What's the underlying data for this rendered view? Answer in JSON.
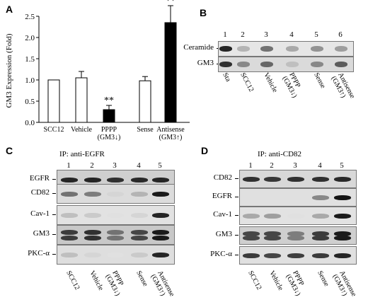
{
  "panels": {
    "A": {
      "letter": "A"
    },
    "B": {
      "letter": "B"
    },
    "C": {
      "letter": "C"
    },
    "D": {
      "letter": "D"
    }
  },
  "chart_data": {
    "type": "bar",
    "ylabel": "GM3 Expression (Fold)",
    "ylim": [
      0,
      2.5
    ],
    "yticks": [
      "0.0",
      "0.5",
      "1.0",
      "1.5",
      "2.0",
      "2.5"
    ],
    "categories": [
      "SCC12",
      "Vehicle",
      "PPPP",
      "Sense",
      "Antisense"
    ],
    "sublabels": [
      "",
      "",
      "(GM3↓)",
      "",
      "(GM3↑)"
    ],
    "values": [
      1.0,
      1.05,
      0.3,
      0.98,
      2.35
    ],
    "errors": [
      0.0,
      0.15,
      0.1,
      0.1,
      0.4
    ],
    "fills": [
      "#ffffff",
      "#ffffff",
      "#000000",
      "#ffffff",
      "#000000"
    ],
    "significance": [
      "",
      "",
      "**",
      "",
      "**"
    ]
  },
  "blot_B": {
    "lanes": [
      "1",
      "2",
      "3",
      "4",
      "5",
      "6"
    ],
    "rows": [
      "Ceramide",
      "GM3"
    ],
    "xlabels": [
      "Sta",
      "SCC12",
      "Vehicle",
      "PPPP",
      "Sense",
      "Antisense"
    ],
    "xsub": [
      "",
      "",
      "",
      "(GM3↓)",
      "",
      "(GM3↑)"
    ]
  },
  "blot_C": {
    "ip": "IP: anti-EGFR",
    "lanes": [
      "1",
      "2",
      "3",
      "4",
      "5"
    ],
    "rows": [
      "EGFR",
      "CD82",
      "Cav-1",
      "GM3",
      "PKC-α"
    ],
    "xlabels": [
      "SCC12",
      "Vehicle",
      "PPPP",
      "Sense",
      "Antisense"
    ],
    "xsub": [
      "",
      "",
      "(GM3↓)",
      "",
      "(GM3↑)"
    ]
  },
  "blot_D": {
    "ip": "IP: anti-CD82",
    "lanes": [
      "1",
      "2",
      "3",
      "4",
      "5"
    ],
    "rows": [
      "CD82",
      "EGFR",
      "Cav-1",
      "GM3",
      "PKC-α"
    ],
    "xlabels": [
      "SCC12",
      "Vehicle",
      "PPPP",
      "Sense",
      "Antisense"
    ],
    "xsub": [
      "",
      "",
      "(GM3↓)",
      "",
      "(GM3↑)"
    ]
  }
}
